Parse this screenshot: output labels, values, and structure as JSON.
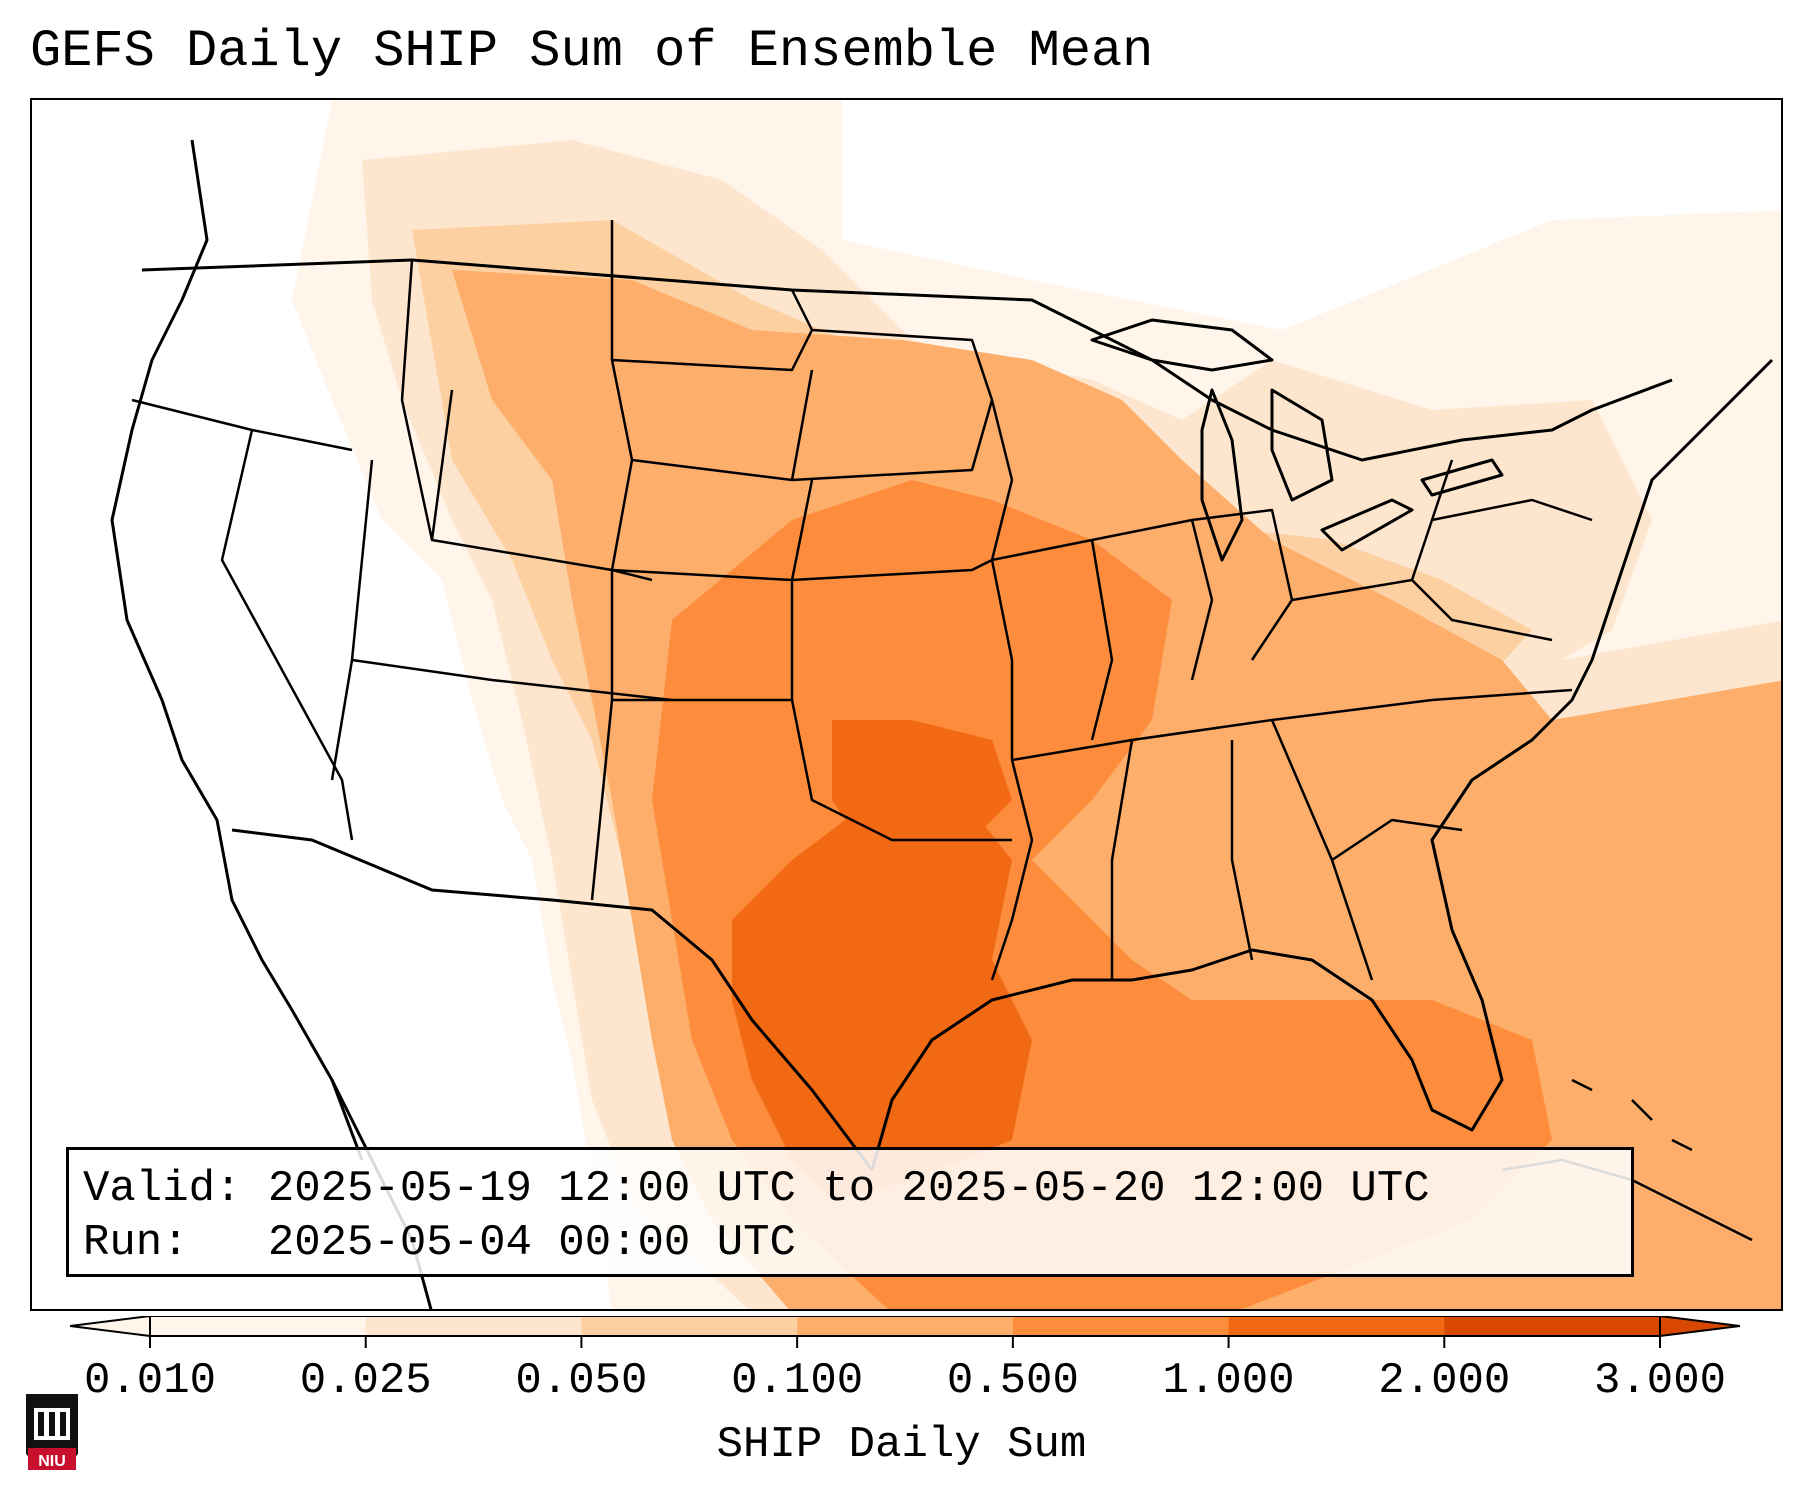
{
  "title": "GEFS Daily SHIP Sum of Ensemble Mean",
  "info": {
    "valid_label": "Valid:",
    "valid_value": "2025-05-19 12:00 UTC to 2025-05-20 12:00 UTC",
    "run_label": "Run:",
    "run_value": "2025-05-04 00:00 UTC"
  },
  "colorbar": {
    "label": "SHIP Daily Sum",
    "ticks": [
      "0.010",
      "0.025",
      "0.050",
      "0.100",
      "0.500",
      "1.000",
      "2.000",
      "3.000"
    ],
    "colors": [
      "#fff5eb",
      "#fee6ce",
      "#fdd0a2",
      "#fdae6b",
      "#fd8d3c",
      "#f16913",
      "#d94801"
    ],
    "extend": "both"
  },
  "logo": {
    "text": "NIU",
    "icon": "niu-logo-icon"
  }
}
